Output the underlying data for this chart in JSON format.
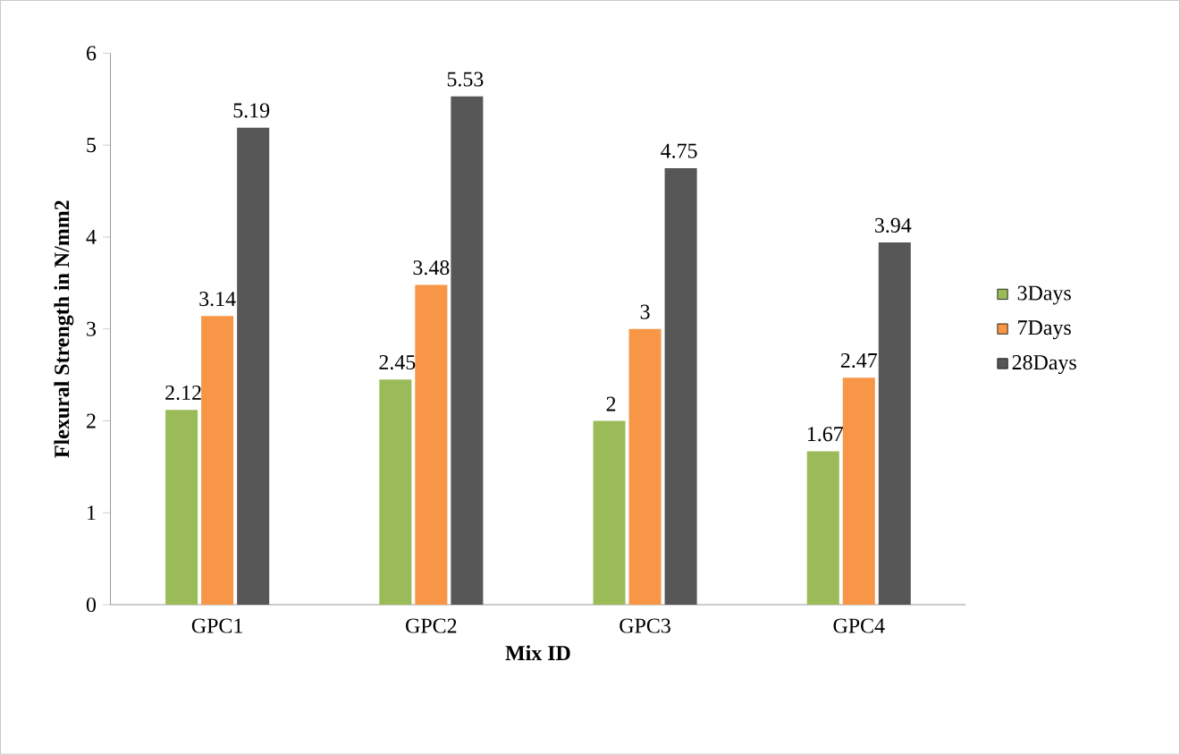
{
  "chart_data": {
    "type": "bar",
    "xlabel": "Mix ID",
    "ylabel": "Flexural Strength in N/mm2",
    "categories": [
      "GPC1",
      "GPC2",
      "GPC3",
      "GPC4"
    ],
    "series": [
      {
        "name": "3Days",
        "color": "#9bbb59",
        "values": [
          2.12,
          2.45,
          2,
          1.67
        ]
      },
      {
        "name": "7Days",
        "color": "#f79646",
        "values": [
          3.14,
          3.48,
          3,
          2.47
        ]
      },
      {
        "name": "28Days",
        "color": "#575757",
        "values": [
          5.19,
          5.53,
          4.75,
          3.94
        ]
      }
    ],
    "ylim": [
      0,
      6
    ],
    "yticks": [
      0,
      1,
      2,
      3,
      4,
      5,
      6
    ],
    "grid": false,
    "legend": "right",
    "data_labels": true
  }
}
